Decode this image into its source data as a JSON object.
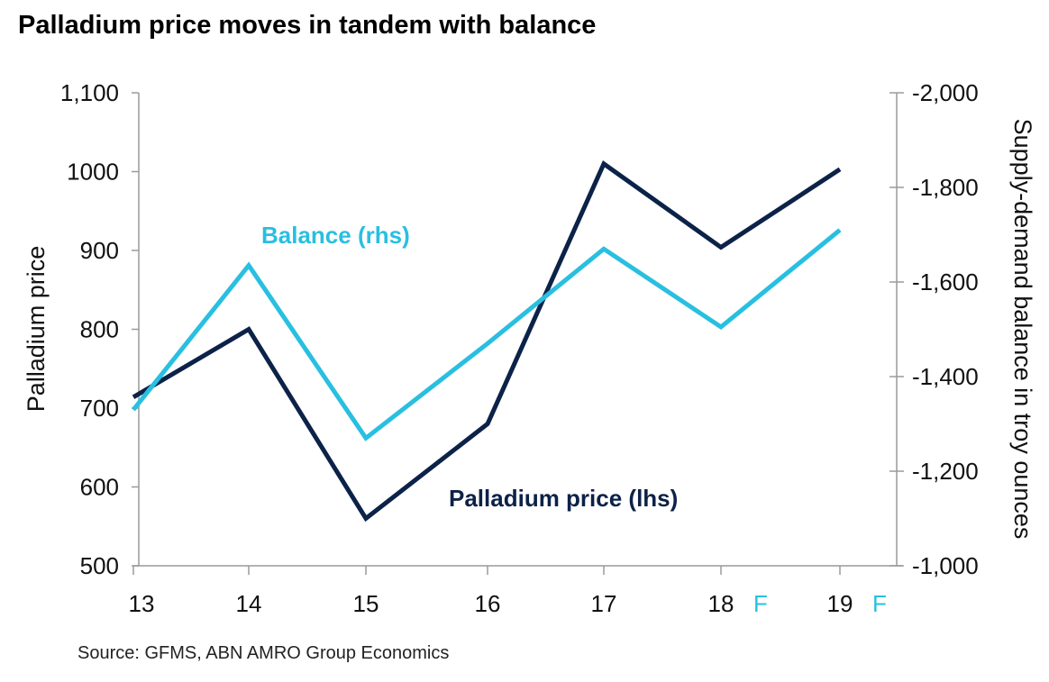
{
  "chart_data": {
    "type": "line",
    "title": "Palladium price moves in tandem with balance",
    "source": "Source: GFMS, ABN AMRO Group Economics",
    "ylabel_left": "Palladium price",
    "ylabel_right": "Supply-demand balance in troy ounces",
    "categories": [
      "13",
      "14",
      "15",
      "16",
      "17",
      "18",
      "19"
    ],
    "forecast_marks": [
      {
        "category": "18",
        "label": "F"
      },
      {
        "category": "19",
        "label": "F"
      }
    ],
    "left_axis": {
      "range": [
        500,
        1100
      ],
      "ticks": [
        500,
        600,
        700,
        800,
        900,
        1000,
        1100
      ],
      "tick_labels": [
        "500",
        "600",
        "700",
        "800",
        "900",
        "1000",
        "1,100"
      ]
    },
    "right_axis": {
      "range": [
        -1000,
        -2000
      ],
      "inverted": true,
      "ticks": [
        -1000,
        -1200,
        -1400,
        -1600,
        -1800,
        -2000
      ],
      "tick_labels": [
        "-1,000",
        "-1,200",
        "-1,400",
        "-1,600",
        "-1,800",
        "-2,000"
      ]
    },
    "series": [
      {
        "name": "Palladium price (lhs)",
        "axis": "left",
        "color": "#0c2248",
        "values": [
          714,
          800,
          560,
          680,
          1010,
          904,
          1003
        ]
      },
      {
        "name": "Balance (rhs)",
        "axis": "right",
        "color": "#29bfe0",
        "values": [
          -1330,
          -1635,
          -1270,
          -1470,
          -1670,
          -1505,
          -1710
        ]
      }
    ],
    "grid": false
  }
}
